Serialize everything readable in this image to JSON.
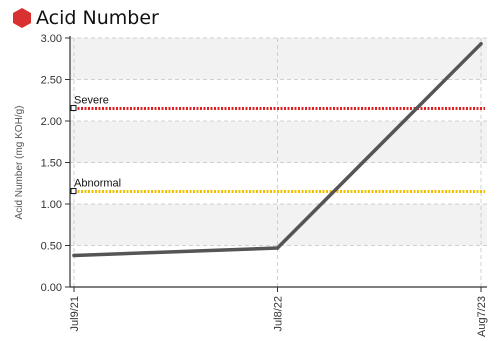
{
  "title": "Acid Number",
  "colors": {
    "title_icon": "#d93030",
    "series_line": "#555555",
    "severe": "#e02020",
    "abnormal": "#f0c000",
    "band": "#f2f2f2",
    "grid": "#d0d0d0",
    "axis": "#333333"
  },
  "icon": "hexagon-icon",
  "chart_data": {
    "type": "line",
    "title": "Acid Number",
    "ylabel": "Acid Number (mg KOH/g)",
    "xlabel": "",
    "ylim": [
      0,
      3.0
    ],
    "yticks": [
      "0.00",
      "0.50",
      "1.00",
      "1.50",
      "2.00",
      "2.50",
      "3.00"
    ],
    "categories": [
      "Jul9/21",
      "Jul8/22",
      "Aug7/23"
    ],
    "series": [
      {
        "values": [
          0.38,
          0.47,
          2.93
        ]
      }
    ],
    "thresholds": [
      {
        "label": "Severe",
        "value": 2.15
      },
      {
        "label": "Abnormal",
        "value": 1.15
      }
    ],
    "grid": true
  }
}
